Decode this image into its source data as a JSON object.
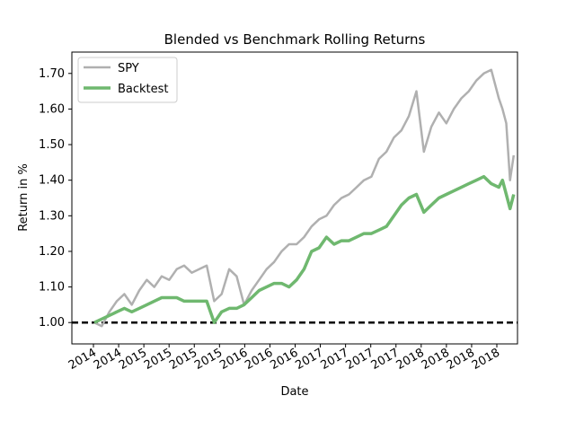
{
  "chart_data": {
    "type": "line",
    "title": "Blended vs Benchmark Rolling Returns",
    "xlabel": "Date",
    "ylabel": "Return in %",
    "x_tick_labels": [
      "2014",
      "2014",
      "2015",
      "2015",
      "2015",
      "2015",
      "2016",
      "2016",
      "2016",
      "2017",
      "2017",
      "2017",
      "2017",
      "2018",
      "2018",
      "2018",
      "2018"
    ],
    "y_ticks": [
      1.0,
      1.1,
      1.2,
      1.3,
      1.4,
      1.5,
      1.6,
      1.7
    ],
    "y_tick_labels": [
      "1.00",
      "1.10",
      "1.20",
      "1.30",
      "1.40",
      "1.50",
      "1.60",
      "1.70"
    ],
    "ylim": [
      0.94,
      1.76
    ],
    "xlim": [
      2013.0,
      2018.95
    ],
    "grid": false,
    "legend_location": "upper-left",
    "reference_line": {
      "y": 1.0,
      "style": "dashed",
      "color": "#000000"
    },
    "series": [
      {
        "name": "SPY",
        "color": "#b0b0b0",
        "x": [
          2013.3,
          2013.4,
          2013.5,
          2013.6,
          2013.7,
          2013.8,
          2013.9,
          2014.0,
          2014.1,
          2014.2,
          2014.3,
          2014.4,
          2014.5,
          2014.6,
          2014.7,
          2014.8,
          2014.9,
          2015.0,
          2015.1,
          2015.2,
          2015.3,
          2015.4,
          2015.5,
          2015.6,
          2015.7,
          2015.8,
          2015.9,
          2016.0,
          2016.1,
          2016.2,
          2016.3,
          2016.4,
          2016.5,
          2016.6,
          2016.7,
          2016.8,
          2016.9,
          2017.0,
          2017.1,
          2017.2,
          2017.3,
          2017.4,
          2017.5,
          2017.6,
          2017.7,
          2017.8,
          2017.9,
          2018.0,
          2018.1,
          2018.2,
          2018.3,
          2018.4,
          2018.5,
          2018.6,
          2018.7,
          2018.75,
          2018.8,
          2018.85,
          2018.9
        ],
        "values": [
          1.0,
          0.99,
          1.03,
          1.06,
          1.08,
          1.05,
          1.09,
          1.12,
          1.1,
          1.13,
          1.12,
          1.15,
          1.16,
          1.14,
          1.15,
          1.16,
          1.06,
          1.08,
          1.15,
          1.13,
          1.05,
          1.09,
          1.12,
          1.15,
          1.17,
          1.2,
          1.22,
          1.22,
          1.24,
          1.27,
          1.29,
          1.3,
          1.33,
          1.35,
          1.36,
          1.38,
          1.4,
          1.41,
          1.46,
          1.48,
          1.52,
          1.54,
          1.58,
          1.65,
          1.48,
          1.55,
          1.59,
          1.56,
          1.6,
          1.63,
          1.65,
          1.68,
          1.7,
          1.71,
          1.63,
          1.6,
          1.56,
          1.4,
          1.47
        ]
      },
      {
        "name": "Backtest",
        "color": "#6fb86f",
        "x": [
          2013.3,
          2013.4,
          2013.5,
          2013.6,
          2013.7,
          2013.8,
          2013.9,
          2014.0,
          2014.1,
          2014.2,
          2014.3,
          2014.4,
          2014.5,
          2014.6,
          2014.7,
          2014.8,
          2014.9,
          2015.0,
          2015.1,
          2015.2,
          2015.3,
          2015.4,
          2015.5,
          2015.6,
          2015.7,
          2015.8,
          2015.9,
          2016.0,
          2016.1,
          2016.2,
          2016.3,
          2016.4,
          2016.5,
          2016.6,
          2016.7,
          2016.8,
          2016.9,
          2017.0,
          2017.1,
          2017.2,
          2017.3,
          2017.4,
          2017.5,
          2017.6,
          2017.7,
          2017.8,
          2017.9,
          2018.0,
          2018.1,
          2018.2,
          2018.3,
          2018.4,
          2018.5,
          2018.6,
          2018.7,
          2018.75,
          2018.8,
          2018.85,
          2018.9
        ],
        "values": [
          1.0,
          1.01,
          1.02,
          1.03,
          1.04,
          1.03,
          1.04,
          1.05,
          1.06,
          1.07,
          1.07,
          1.07,
          1.06,
          1.06,
          1.06,
          1.06,
          1.0,
          1.03,
          1.04,
          1.04,
          1.05,
          1.07,
          1.09,
          1.1,
          1.11,
          1.11,
          1.1,
          1.12,
          1.15,
          1.2,
          1.21,
          1.24,
          1.22,
          1.23,
          1.23,
          1.24,
          1.25,
          1.25,
          1.26,
          1.27,
          1.3,
          1.33,
          1.35,
          1.36,
          1.31,
          1.33,
          1.35,
          1.36,
          1.37,
          1.38,
          1.39,
          1.4,
          1.41,
          1.39,
          1.38,
          1.4,
          1.36,
          1.32,
          1.36
        ]
      }
    ]
  }
}
